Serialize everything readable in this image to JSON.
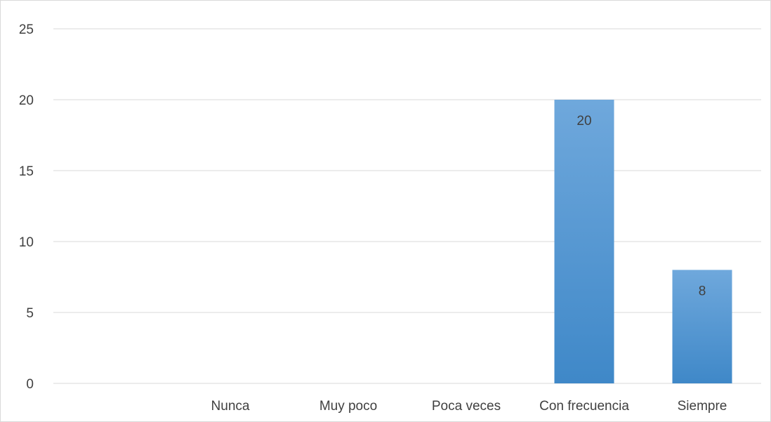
{
  "chart_data": {
    "type": "bar",
    "title": "",
    "xlabel": "",
    "ylabel": "",
    "categories": [
      "",
      "Nunca",
      "Muy poco",
      "Poca veces",
      "Con frecuencia",
      "Siempre"
    ],
    "values": [
      null,
      null,
      null,
      null,
      20,
      8
    ],
    "data_labels": [
      "",
      "",
      "",
      "",
      "20",
      "8"
    ],
    "ylim": [
      0,
      25
    ],
    "yticks": [
      0,
      5,
      10,
      15,
      20,
      25
    ],
    "grid": true,
    "legend": "none",
    "colors": {
      "bar_top": "#6FA8DC",
      "bar_bottom": "#3F88C8",
      "gridline": "#d9d9d9",
      "text": "#404040"
    }
  }
}
